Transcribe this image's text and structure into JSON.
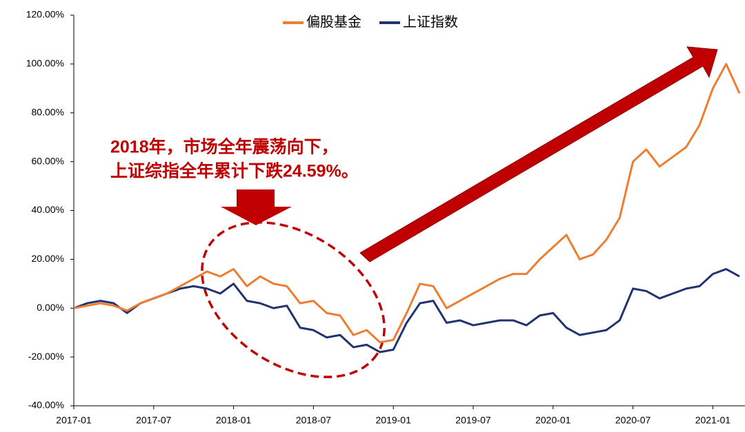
{
  "chart_data": {
    "type": "line",
    "x": [
      "2017-01",
      "2017-02",
      "2017-03",
      "2017-04",
      "2017-05",
      "2017-06",
      "2017-07",
      "2017-08",
      "2017-09",
      "2017-10",
      "2017-11",
      "2017-12",
      "2018-01",
      "2018-02",
      "2018-03",
      "2018-04",
      "2018-05",
      "2018-06",
      "2018-07",
      "2018-08",
      "2018-09",
      "2018-10",
      "2018-11",
      "2018-12",
      "2019-01",
      "2019-02",
      "2019-03",
      "2019-04",
      "2019-05",
      "2019-06",
      "2019-07",
      "2019-08",
      "2019-09",
      "2019-10",
      "2019-11",
      "2019-12",
      "2020-01",
      "2020-02",
      "2020-03",
      "2020-04",
      "2020-05",
      "2020-06",
      "2020-07",
      "2020-08",
      "2020-09",
      "2020-10",
      "2020-11",
      "2020-12",
      "2021-01",
      "2021-02",
      "2021-03"
    ],
    "series": [
      {
        "name": "偏股基金",
        "color": "#ED7D31",
        "values": [
          0,
          1,
          2,
          1,
          -1,
          2,
          4,
          6,
          9,
          12,
          15,
          13,
          16,
          9,
          13,
          10,
          9,
          2,
          3,
          -2,
          -3,
          -11,
          -9,
          -14,
          -13,
          -2,
          10,
          9,
          0,
          3,
          6,
          9,
          12,
          14,
          14,
          20,
          25,
          30,
          20,
          22,
          28,
          37,
          60,
          65,
          58,
          62,
          66,
          75,
          90,
          100,
          88
        ]
      },
      {
        "name": "上证指数",
        "color": "#1F3370",
        "values": [
          0,
          2,
          3,
          2,
          -2,
          2,
          4,
          6,
          8,
          9,
          8,
          6,
          10,
          3,
          2,
          0,
          1,
          -8,
          -9,
          -12,
          -11,
          -16,
          -15,
          -18,
          -17,
          -6,
          2,
          3,
          -6,
          -5,
          -7,
          -6,
          -5,
          -5,
          -7,
          -3,
          -2,
          -8,
          -11,
          -10,
          -9,
          -5,
          8,
          7,
          4,
          6,
          8,
          9,
          14,
          16,
          13
        ]
      }
    ],
    "xticks": [
      "2017-01",
      "2017-07",
      "2018-01",
      "2018-07",
      "2019-01",
      "2019-07",
      "2020-01",
      "2020-07",
      "2021-01"
    ],
    "ylim": [
      -40,
      120
    ],
    "yticks": [
      {
        "value": -40,
        "label": "-40.00%"
      },
      {
        "value": -20,
        "label": "-20.00%"
      },
      {
        "value": 0,
        "label": "0.00%"
      },
      {
        "value": 20,
        "label": "20.00%"
      },
      {
        "value": 40,
        "label": "40.00%"
      },
      {
        "value": 60,
        "label": "60.00%"
      },
      {
        "value": 80,
        "label": "80.00%"
      },
      {
        "value": 100,
        "label": "100.00%"
      },
      {
        "value": 120,
        "label": "120.00%"
      }
    ],
    "legend": "top",
    "annotations": [
      "2018年，市场全年震荡向下，",
      "上证综指全年累计下跌24.59%。"
    ]
  }
}
